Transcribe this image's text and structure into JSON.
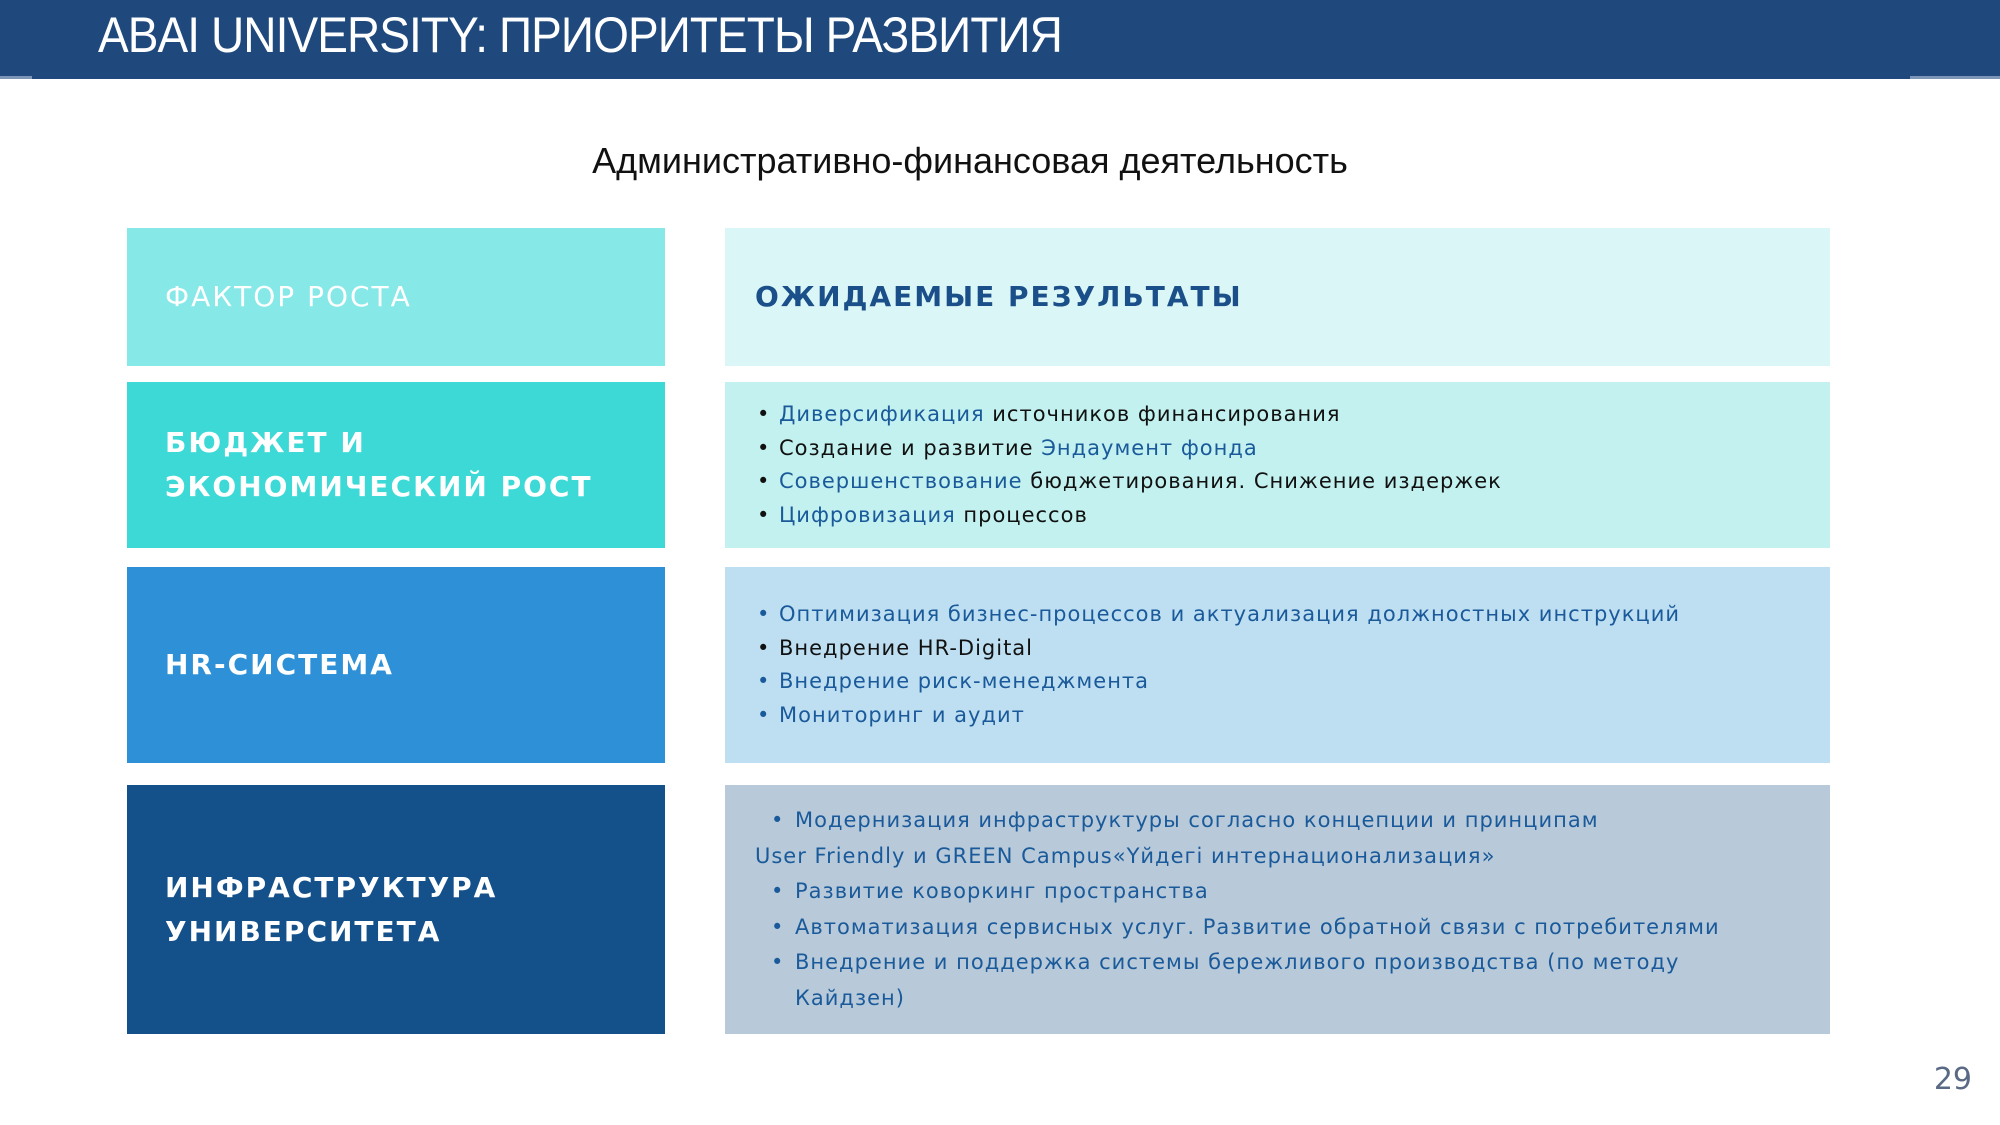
{
  "header": {
    "title": "ABAI UNIVERSITY:  ПРИОРИТЕТЫ РАЗВИТИЯ"
  },
  "subtitle": "Административно-финансовая деятельность",
  "table": {
    "left_header": "ФАКТОР РОСТА",
    "right_header": "ОЖИДАЕМЫЕ РЕЗУЛЬТАТЫ",
    "rows": [
      {
        "factor": "БЮДЖЕТ И ЭКОНОМИЧЕСКИЙ РОСТ",
        "results": [
          {
            "a": "Диверсификация",
            "b": " источников финансирования"
          },
          {
            "a": "Создание и развитие ",
            "b": "Эндаумент фонда"
          },
          {
            "a": "Совершенствование",
            "b": " бюджетирования. Снижение издержек"
          },
          {
            "a": "Цифровизация",
            "b": " процессов"
          }
        ]
      },
      {
        "factor": "HR-СИСТЕМА",
        "results": [
          "Оптимизация бизнес-процессов и актуализация должностных инструкций",
          "Внедрение HR-Digital",
          "Внедрение риск-менеджмента",
          "Мониторинг и аудит"
        ]
      },
      {
        "factor": "ИНФРАСТРУКТУРА УНИВЕРСИТЕТА",
        "results": [
          "Модернизация инфраструктуры согласно концепции и принципам",
          "User Friendly и GREEN Campus«Үйдегі интернационализация»",
          "Развитие коворкинг пространства",
          "Автоматизация сервисных услуг. Развитие обратной связи с потребителями",
          "Внедрение и поддержка системы бережливого производства (по методу Кайдзен)"
        ]
      }
    ]
  },
  "page_number": "29",
  "colors": {
    "header": "#1f497d",
    "accent_text": "#1a5a9a"
  }
}
